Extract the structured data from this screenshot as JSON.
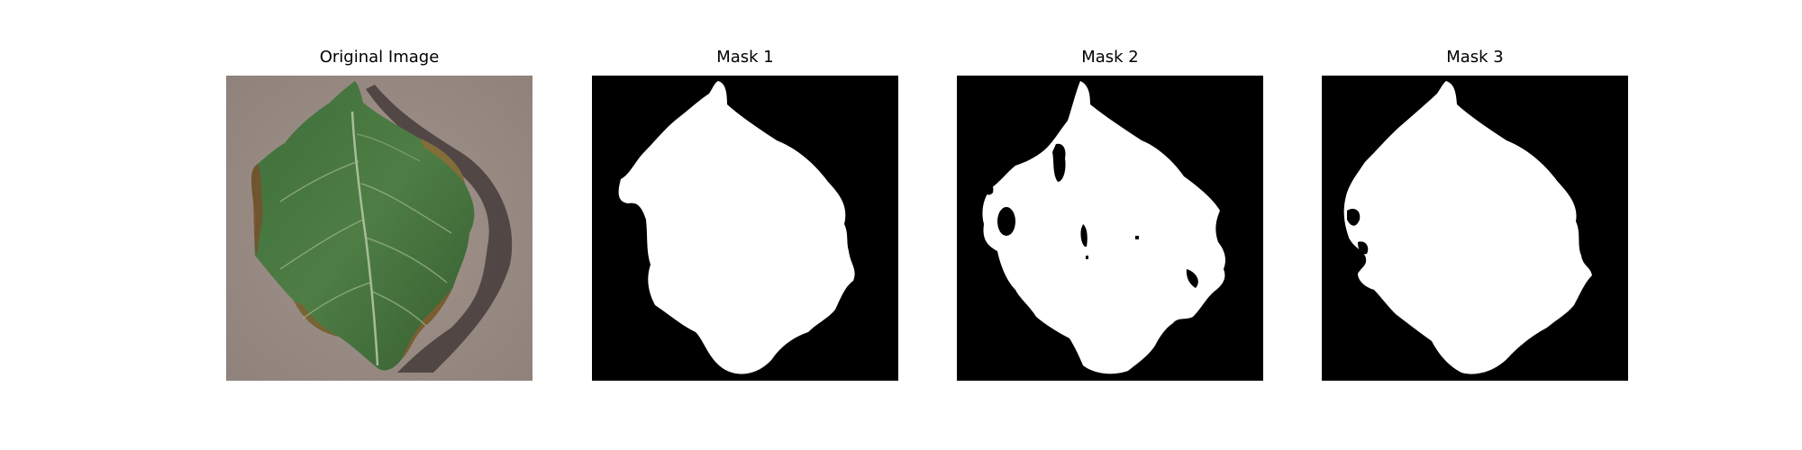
{
  "figure": {
    "panels": [
      {
        "title": "Original Image"
      },
      {
        "title": "Mask 1"
      },
      {
        "title": "Mask 2"
      },
      {
        "title": "Mask 3"
      }
    ]
  }
}
